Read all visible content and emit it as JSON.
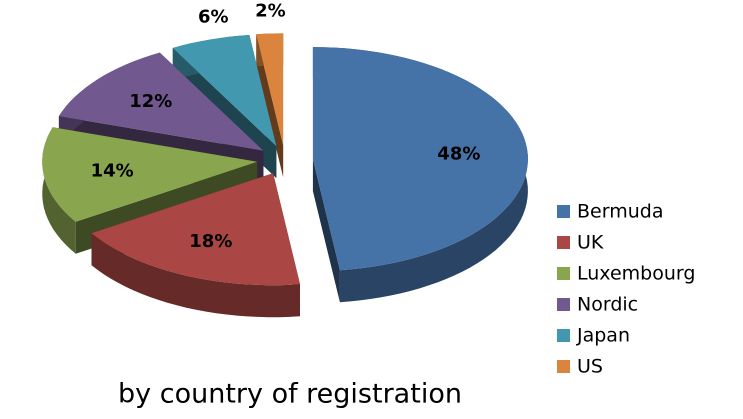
{
  "chart_data": {
    "type": "pie",
    "title": "by country of registration",
    "categories": [
      "Bermuda",
      "UK",
      "Luxembourg",
      "Nordic",
      "Japan",
      "US"
    ],
    "values": [
      48,
      18,
      14,
      12,
      6,
      2
    ],
    "value_labels": [
      "48%",
      "18%",
      "14%",
      "12%",
      "6%",
      "2%"
    ],
    "colors": [
      "#4572a7",
      "#aa4643",
      "#89a54e",
      "#71588f",
      "#4198af",
      "#db843d"
    ],
    "legend": "right"
  }
}
